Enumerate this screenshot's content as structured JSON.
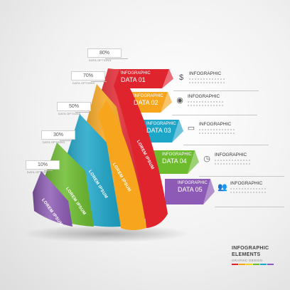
{
  "levels": [
    {
      "percent": "80%",
      "options": "DATA OPTIONS"
    },
    {
      "percent": "70%",
      "options": "DATA OPTIONS"
    },
    {
      "percent": "50%",
      "options": "DATA OPTIONS"
    },
    {
      "percent": "30%",
      "options": "DATA OPTIONS"
    },
    {
      "percent": "10%",
      "options": "DATA OPTIONS"
    }
  ],
  "bands": [
    {
      "heading": "INFOGRAPHIC",
      "data": "DATA 01",
      "color": "#e0242e",
      "icon": "dollar-icon",
      "glyph": "$",
      "info": "INFOGRAPHIC"
    },
    {
      "heading": "INFOGRAPHIC",
      "data": "DATA 02",
      "color": "#f6a51c",
      "icon": "globe-icon",
      "glyph": "◉",
      "info": "INFOGRAPHIC"
    },
    {
      "heading": "INFOGRAPHIC",
      "data": "DATA 03",
      "color": "#1ea6c9",
      "icon": "laptop-icon",
      "glyph": "▭",
      "info": "INFOGRAPHIC"
    },
    {
      "heading": "INFOGRAPHIC",
      "data": "DATA 04",
      "color": "#6cbc2e",
      "icon": "clock-icon",
      "glyph": "◷",
      "info": "INFOGRAPHIC"
    },
    {
      "heading": "INFOGRAPHIC",
      "data": "DATA 05",
      "color": "#8d5bb5",
      "icon": "people-icon",
      "glyph": "👥",
      "info": "INFOGRAPHIC"
    }
  ],
  "ribbons": [
    "LOREM IPSUM",
    "LOREM IPSUM",
    "LOREM IPSUM",
    "LOREM IPSUM",
    "LOREM IPSUM"
  ],
  "footer": {
    "line1": "INFOGRAPHIC",
    "line2": "ELEMENTS",
    "line3": "GRAPHIC DESIGN",
    "swatches": [
      "#e0242e",
      "#f6a51c",
      "#f4d21b",
      "#6cbc2e",
      "#1ea6c9",
      "#8d5bb5"
    ]
  }
}
